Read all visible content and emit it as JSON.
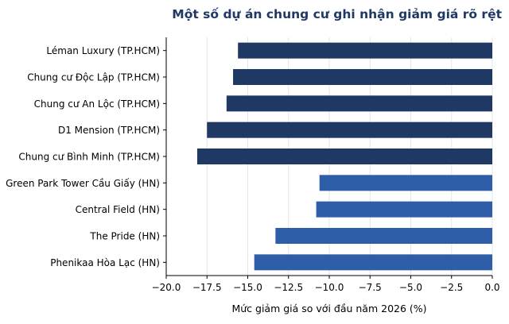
{
  "chart_data": {
    "type": "bar",
    "orientation": "horizontal",
    "title": "Một số dự án chung cư ghi nhận giảm giá rõ rệt",
    "xlabel": "Mức giảm giá so với đầu năm 2026 (%)",
    "ylabel": "",
    "xlim": [
      -20,
      0
    ],
    "xticks": [
      -20,
      -17.5,
      -15,
      -12.5,
      -10,
      -7.5,
      -5,
      -2.5,
      0
    ],
    "xtick_labels": [
      "−20.0",
      "−17.5",
      "−15.0",
      "−12.5",
      "−10.0",
      "−7.5",
      "−5.0",
      "−2.5",
      "0.0"
    ],
    "grid": "vertical",
    "categories": [
      "Léman Luxury (TP.HCM)",
      "Chung cư Độc Lập (TP.HCM)",
      "Chung cư An Lộc (TP.HCM)",
      "D1 Mension (TP.HCM)",
      "Chung cư Bình Minh (TP.HCM)",
      "Green Park Tower Cầu Giấy (HN)",
      "Central Field (HN)",
      "The Pride (HN)",
      "Phenikaa Hòa Lạc (HN)"
    ],
    "values": [
      -15.6,
      -15.9,
      -16.3,
      -17.5,
      -18.1,
      -10.6,
      -10.8,
      -13.3,
      -14.6
    ],
    "bar_colors": [
      "#1f3864",
      "#1f3864",
      "#1f3864",
      "#1f3864",
      "#1f3864",
      "#2e5ea8",
      "#2e5ea8",
      "#2e5ea8",
      "#2e5ea8"
    ],
    "title_color": "#1f3864"
  }
}
